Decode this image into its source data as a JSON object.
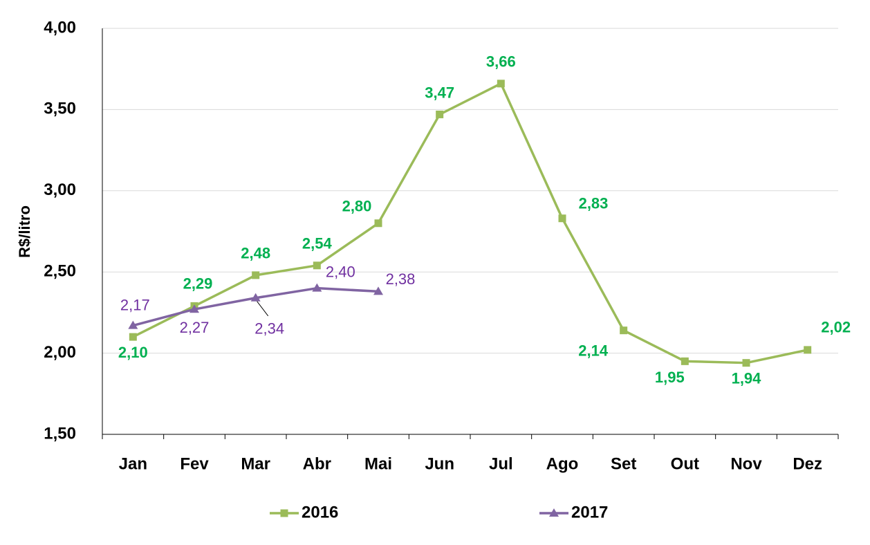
{
  "chart_data": {
    "type": "line",
    "y_label": "R$/litro",
    "categories": [
      "Jan",
      "Fev",
      "Mar",
      "Abr",
      "Mai",
      "Jun",
      "Jul",
      "Ago",
      "Set",
      "Out",
      "Nov",
      "Dez"
    ],
    "series": [
      {
        "name": "2016",
        "color": "#9bbb59",
        "label_color": "#00b050",
        "marker": "square",
        "values": [
          2.1,
          2.29,
          2.48,
          2.54,
          2.8,
          3.47,
          3.66,
          2.83,
          2.14,
          1.95,
          1.94,
          2.02
        ],
        "value_labels": [
          "2,10",
          "2,29",
          "2,48",
          "2,54",
          "2,80",
          "3,47",
          "3,66",
          "2,83",
          "2,14",
          "1,95",
          "1,94",
          "2,02"
        ]
      },
      {
        "name": "2017",
        "color": "#8064a2",
        "label_color": "#7030a0",
        "marker": "triangle",
        "values": [
          2.17,
          2.27,
          2.34,
          2.4,
          2.38,
          null,
          null,
          null,
          null,
          null,
          null,
          null
        ],
        "value_labels": [
          "2,17",
          "2,27",
          "2,34",
          "2,40",
          "2,38",
          null,
          null,
          null,
          null,
          null,
          null,
          null
        ]
      }
    ],
    "ylim": [
      1.5,
      4.0
    ],
    "yticks": [
      {
        "value": 1.5,
        "label": "1,50"
      },
      {
        "value": 2.0,
        "label": "2,00"
      },
      {
        "value": 2.5,
        "label": "2,50"
      },
      {
        "value": 3.0,
        "label": "3,00"
      },
      {
        "value": 3.5,
        "label": "3,50"
      },
      {
        "value": 4.0,
        "label": "4,00"
      }
    ],
    "grid": true,
    "legend": "bottom"
  }
}
